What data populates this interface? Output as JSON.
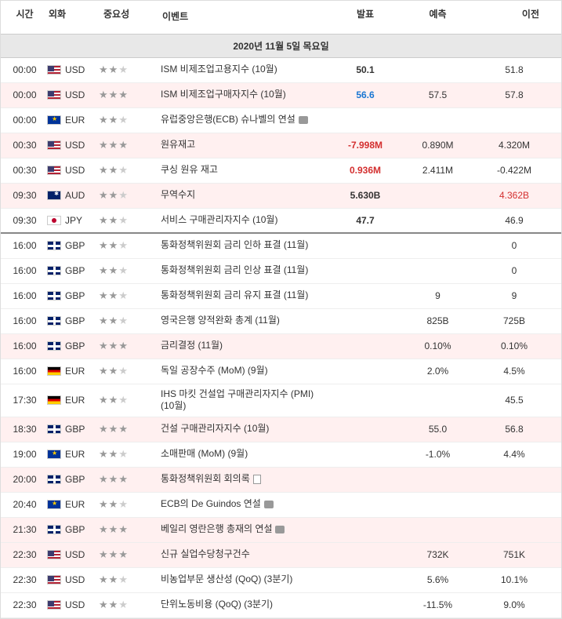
{
  "headers": {
    "time": "시간",
    "currency": "외화",
    "importance": "중요성",
    "event": "이벤트",
    "actual": "발표",
    "forecast": "예측",
    "previous": "이전"
  },
  "date_header": "2020년 11월 5일 목요일",
  "rows": [
    {
      "time": "00:00",
      "flag": "usd",
      "cur": "USD",
      "stars": 2,
      "event": "ISM 비제조업고용지수 (10월)",
      "actual": "50.1",
      "actualCls": "",
      "forecast": "",
      "previous": "51.8",
      "alt": false
    },
    {
      "time": "00:00",
      "flag": "usd",
      "cur": "USD",
      "stars": 3,
      "event": "ISM 비제조업구매자지수 (10월)",
      "actual": "56.6",
      "actualCls": "val-blue",
      "forecast": "57.5",
      "previous": "57.8",
      "alt": true
    },
    {
      "time": "00:00",
      "flag": "eur",
      "cur": "EUR",
      "stars": 2,
      "event": "유럽중앙은행(ECB) 슈나벨의 연설",
      "actual": "",
      "actualCls": "",
      "forecast": "",
      "previous": "",
      "alt": false,
      "speech": true
    },
    {
      "time": "00:30",
      "flag": "usd",
      "cur": "USD",
      "stars": 3,
      "event": "원유재고",
      "actual": "-7.998M",
      "actualCls": "val-neg",
      "forecast": "0.890M",
      "previous": "4.320M",
      "alt": true
    },
    {
      "time": "00:30",
      "flag": "usd",
      "cur": "USD",
      "stars": 2,
      "event": "쿠싱 원유 재고",
      "actual": "0.936M",
      "actualCls": "val-neg",
      "forecast": "2.411M",
      "previous": "-0.422M",
      "alt": false
    },
    {
      "time": "09:30",
      "flag": "aud",
      "cur": "AUD",
      "stars": 2,
      "event": "무역수지",
      "actual": "5.630B",
      "actualCls": "",
      "forecast": "",
      "previous": "4.362B",
      "prevCls": "val-neg",
      "alt": true
    },
    {
      "time": "09:30",
      "flag": "jpy",
      "cur": "JPY",
      "stars": 2,
      "event": "서비스 구매관리자지수 (10월)",
      "actual": "47.7",
      "actualCls": "",
      "forecast": "",
      "previous": "46.9",
      "alt": false,
      "divider": true
    },
    {
      "time": "16:00",
      "flag": "gbp",
      "cur": "GBP",
      "stars": 2,
      "event": "통화정책위원회 금리 인하 표결 (11월)",
      "actual": "",
      "actualCls": "",
      "forecast": "",
      "previous": "0",
      "alt": false
    },
    {
      "time": "16:00",
      "flag": "gbp",
      "cur": "GBP",
      "stars": 2,
      "event": "통화정책위원회 금리 인상 표결 (11월)",
      "actual": "",
      "actualCls": "",
      "forecast": "",
      "previous": "0",
      "alt": false
    },
    {
      "time": "16:00",
      "flag": "gbp",
      "cur": "GBP",
      "stars": 2,
      "event": "통화정책위원회 금리 유지 표결 (11월)",
      "actual": "",
      "actualCls": "",
      "forecast": "9",
      "previous": "9",
      "alt": false
    },
    {
      "time": "16:00",
      "flag": "gbp",
      "cur": "GBP",
      "stars": 2,
      "event": "영국은행 양적완화 총계 (11월)",
      "actual": "",
      "actualCls": "",
      "forecast": "825B",
      "previous": "725B",
      "alt": false
    },
    {
      "time": "16:00",
      "flag": "gbp",
      "cur": "GBP",
      "stars": 3,
      "event": "금리결정 (11월)",
      "actual": "",
      "actualCls": "",
      "forecast": "0.10%",
      "previous": "0.10%",
      "alt": true
    },
    {
      "time": "16:00",
      "flag": "deu",
      "cur": "EUR",
      "stars": 2,
      "event": "독일 공장수주 (MoM) (9월)",
      "actual": "",
      "actualCls": "",
      "forecast": "2.0%",
      "previous": "4.5%",
      "alt": false
    },
    {
      "time": "17:30",
      "flag": "deu",
      "cur": "EUR",
      "stars": 2,
      "event": "IHS 마킷 건설업 구매관리자지수 (PMI) (10월)",
      "actual": "",
      "actualCls": "",
      "forecast": "",
      "previous": "45.5",
      "alt": false
    },
    {
      "time": "18:30",
      "flag": "gbp",
      "cur": "GBP",
      "stars": 3,
      "event": "건설 구매관리자지수 (10월)",
      "actual": "",
      "actualCls": "",
      "forecast": "55.0",
      "previous": "56.8",
      "alt": true
    },
    {
      "time": "19:00",
      "flag": "eur",
      "cur": "EUR",
      "stars": 2,
      "event": "소매판매 (MoM) (9월)",
      "actual": "",
      "actualCls": "",
      "forecast": "-1.0%",
      "previous": "4.4%",
      "alt": false
    },
    {
      "time": "20:00",
      "flag": "gbp",
      "cur": "GBP",
      "stars": 3,
      "event": "통화정책위원회 회의록",
      "actual": "",
      "actualCls": "",
      "forecast": "",
      "previous": "",
      "alt": true,
      "doc": true
    },
    {
      "time": "20:40",
      "flag": "eur",
      "cur": "EUR",
      "stars": 2,
      "event": "ECB의 De Guindos 연설",
      "actual": "",
      "actualCls": "",
      "forecast": "",
      "previous": "",
      "alt": false,
      "speech": true
    },
    {
      "time": "21:30",
      "flag": "gbp",
      "cur": "GBP",
      "stars": 3,
      "event": "베일리 영란은행 총재의 연설",
      "actual": "",
      "actualCls": "",
      "forecast": "",
      "previous": "",
      "alt": true,
      "speech": true
    },
    {
      "time": "22:30",
      "flag": "usd",
      "cur": "USD",
      "stars": 3,
      "event": "신규 실업수당청구건수",
      "actual": "",
      "actualCls": "",
      "forecast": "732K",
      "previous": "751K",
      "alt": true
    },
    {
      "time": "22:30",
      "flag": "usd",
      "cur": "USD",
      "stars": 2,
      "event": "비농업부문 생산성 (QoQ) (3분기)",
      "actual": "",
      "actualCls": "",
      "forecast": "5.6%",
      "previous": "10.1%",
      "alt": false
    },
    {
      "time": "22:30",
      "flag": "usd",
      "cur": "USD",
      "stars": 2,
      "event": "단위노동비용 (QoQ) (3분기)",
      "actual": "",
      "actualCls": "",
      "forecast": "-11.5%",
      "previous": "9.0%",
      "alt": false
    }
  ]
}
